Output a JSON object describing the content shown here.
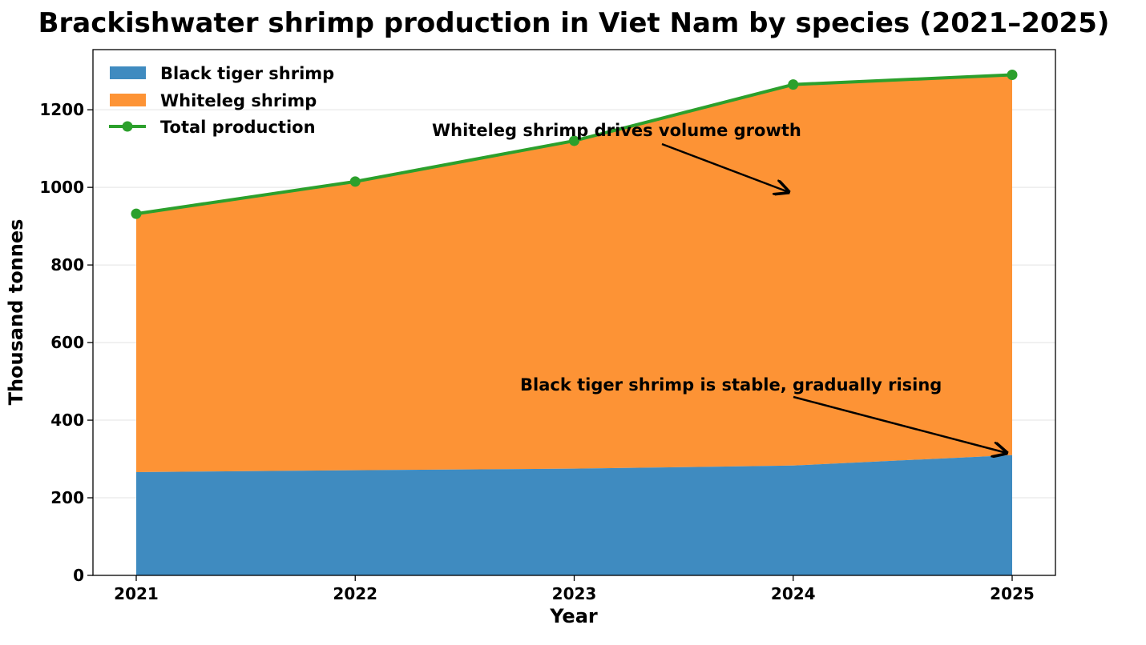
{
  "chart_data": {
    "type": "area",
    "title": "Brackishwater shrimp production in Viet Nam by species (2021–2025)",
    "xlabel": "Year",
    "ylabel": "Thousand tonnes",
    "categories": [
      "2021",
      "2022",
      "2023",
      "2024",
      "2025"
    ],
    "ylim": [
      0,
      1355
    ],
    "yticks": [
      0,
      200,
      400,
      600,
      800,
      1000,
      1200
    ],
    "stacked": true,
    "grid": "y",
    "legend_position": "top-left",
    "series": [
      {
        "name": "Black tiger shrimp",
        "kind": "area",
        "color": "#3f8bc0",
        "values": [
          266,
          271,
          275,
          283,
          310
        ]
      },
      {
        "name": "Whiteleg shrimp",
        "kind": "area",
        "color": "#fd9335",
        "values": [
          666,
          744,
          845,
          982,
          980
        ]
      },
      {
        "name": "Total production",
        "kind": "line",
        "color": "#2ca02c",
        "values": [
          932,
          1015,
          1120,
          1265,
          1290
        ]
      }
    ],
    "annotations": [
      {
        "text": "Whiteleg shrimp drives volume growth",
        "target_x": "2024",
        "target_y": 980
      },
      {
        "text": "Black tiger shrimp is stable, gradually rising",
        "target_x": "2025",
        "target_y": 310
      }
    ]
  }
}
